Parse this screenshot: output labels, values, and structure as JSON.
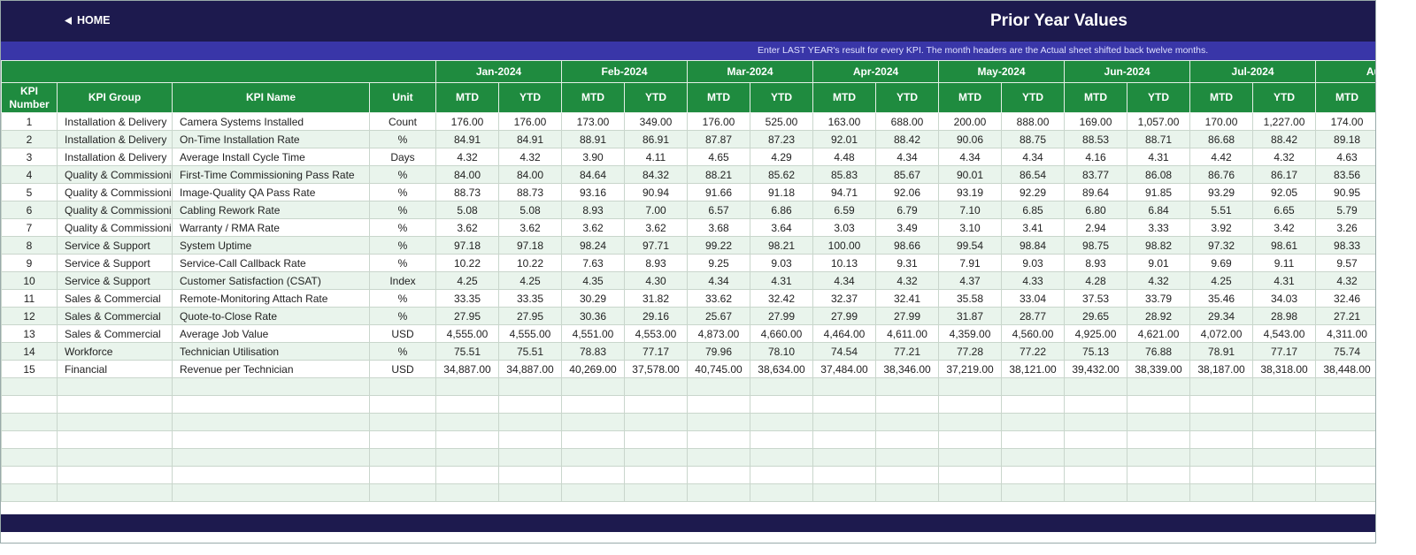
{
  "header": {
    "home": "HOME",
    "title": "Prior Year Values"
  },
  "banner": "Enter LAST YEAR's result for every KPI. The month headers are the Actual sheet shifted back twelve months.",
  "table": {
    "months": [
      "Jan-2024",
      "Feb-2024",
      "Mar-2024",
      "Apr-2024",
      "May-2024",
      "Jun-2024",
      "Jul-2024",
      "Aug-"
    ],
    "columns": [
      "KPI Number",
      "KPI Group",
      "KPI Name",
      "Unit"
    ],
    "sub_headers": [
      "MTD",
      "YTD",
      "MTD",
      "YTD",
      "MTD",
      "YTD",
      "MTD",
      "YTD",
      "MTD",
      "YTD",
      "MTD",
      "YTD",
      "MTD",
      "YTD",
      "MTD"
    ],
    "rows": [
      [
        "1",
        "Installation & Delivery",
        "Camera Systems Installed",
        "Count",
        "176.00",
        "176.00",
        "173.00",
        "349.00",
        "176.00",
        "525.00",
        "163.00",
        "688.00",
        "200.00",
        "888.00",
        "169.00",
        "1,057.00",
        "170.00",
        "1,227.00",
        "174.00"
      ],
      [
        "2",
        "Installation & Delivery",
        "On-Time Installation Rate",
        "%",
        "84.91",
        "84.91",
        "88.91",
        "86.91",
        "87.87",
        "87.23",
        "92.01",
        "88.42",
        "90.06",
        "88.75",
        "88.53",
        "88.71",
        "86.68",
        "88.42",
        "89.18"
      ],
      [
        "3",
        "Installation & Delivery",
        "Average Install Cycle Time",
        "Days",
        "4.32",
        "4.32",
        "3.90",
        "4.11",
        "4.65",
        "4.29",
        "4.48",
        "4.34",
        "4.34",
        "4.34",
        "4.16",
        "4.31",
        "4.42",
        "4.32",
        "4.63"
      ],
      [
        "4",
        "Quality & Commissioni",
        "First-Time Commissioning Pass Rate",
        "%",
        "84.00",
        "84.00",
        "84.64",
        "84.32",
        "88.21",
        "85.62",
        "85.83",
        "85.67",
        "90.01",
        "86.54",
        "83.77",
        "86.08",
        "86.76",
        "86.17",
        "83.56"
      ],
      [
        "5",
        "Quality & Commissioni",
        "Image-Quality QA Pass Rate",
        "%",
        "88.73",
        "88.73",
        "93.16",
        "90.94",
        "91.66",
        "91.18",
        "94.71",
        "92.06",
        "93.19",
        "92.29",
        "89.64",
        "91.85",
        "93.29",
        "92.05",
        "90.95"
      ],
      [
        "6",
        "Quality & Commissioni",
        "Cabling Rework Rate",
        "%",
        "5.08",
        "5.08",
        "8.93",
        "7.00",
        "6.57",
        "6.86",
        "6.59",
        "6.79",
        "7.10",
        "6.85",
        "6.80",
        "6.84",
        "5.51",
        "6.65",
        "5.79"
      ],
      [
        "7",
        "Quality & Commissioni",
        "Warranty / RMA Rate",
        "%",
        "3.62",
        "3.62",
        "3.62",
        "3.62",
        "3.68",
        "3.64",
        "3.03",
        "3.49",
        "3.10",
        "3.41",
        "2.94",
        "3.33",
        "3.92",
        "3.42",
        "3.26"
      ],
      [
        "8",
        "Service & Support",
        "System Uptime",
        "%",
        "97.18",
        "97.18",
        "98.24",
        "97.71",
        "99.22",
        "98.21",
        "100.00",
        "98.66",
        "99.54",
        "98.84",
        "98.75",
        "98.82",
        "97.32",
        "98.61",
        "98.33"
      ],
      [
        "9",
        "Service & Support",
        "Service-Call Callback Rate",
        "%",
        "10.22",
        "10.22",
        "7.63",
        "8.93",
        "9.25",
        "9.03",
        "10.13",
        "9.31",
        "7.91",
        "9.03",
        "8.93",
        "9.01",
        "9.69",
        "9.11",
        "9.57"
      ],
      [
        "10",
        "Service & Support",
        "Customer Satisfaction (CSAT)",
        "Index",
        "4.25",
        "4.25",
        "4.35",
        "4.30",
        "4.34",
        "4.31",
        "4.34",
        "4.32",
        "4.37",
        "4.33",
        "4.28",
        "4.32",
        "4.25",
        "4.31",
        "4.32"
      ],
      [
        "11",
        "Sales & Commercial",
        "Remote-Monitoring Attach Rate",
        "%",
        "33.35",
        "33.35",
        "30.29",
        "31.82",
        "33.62",
        "32.42",
        "32.37",
        "32.41",
        "35.58",
        "33.04",
        "37.53",
        "33.79",
        "35.46",
        "34.03",
        "32.46"
      ],
      [
        "12",
        "Sales & Commercial",
        "Quote-to-Close Rate",
        "%",
        "27.95",
        "27.95",
        "30.36",
        "29.16",
        "25.67",
        "27.99",
        "27.99",
        "27.99",
        "31.87",
        "28.77",
        "29.65",
        "28.92",
        "29.34",
        "28.98",
        "27.21"
      ],
      [
        "13",
        "Sales & Commercial",
        "Average Job Value",
        "USD",
        "4,555.00",
        "4,555.00",
        "4,551.00",
        "4,553.00",
        "4,873.00",
        "4,660.00",
        "4,464.00",
        "4,611.00",
        "4,359.00",
        "4,560.00",
        "4,925.00",
        "4,621.00",
        "4,072.00",
        "4,543.00",
        "4,311.00"
      ],
      [
        "14",
        "Workforce",
        "Technician Utilisation",
        "%",
        "75.51",
        "75.51",
        "78.83",
        "77.17",
        "79.96",
        "78.10",
        "74.54",
        "77.21",
        "77.28",
        "77.22",
        "75.13",
        "76.88",
        "78.91",
        "77.17",
        "75.74"
      ],
      [
        "15",
        "Financial",
        "Revenue per Technician",
        "USD",
        "34,887.00",
        "34,887.00",
        "40,269.00",
        "37,578.00",
        "40,745.00",
        "38,634.00",
        "37,484.00",
        "38,346.00",
        "37,219.00",
        "38,121.00",
        "39,432.00",
        "38,339.00",
        "38,187.00",
        "38,318.00",
        "38,448.00"
      ]
    ]
  }
}
